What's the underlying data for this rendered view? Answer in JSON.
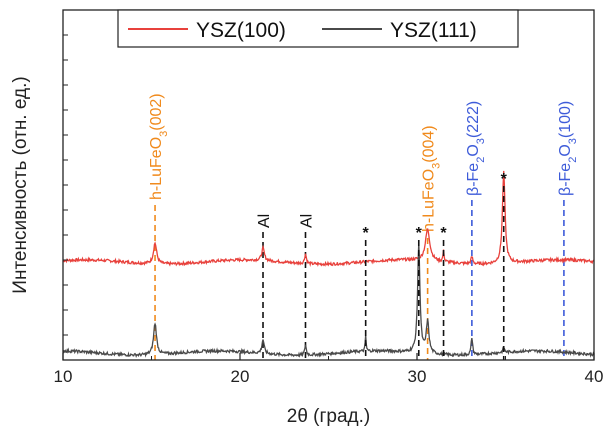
{
  "chart_data": {
    "type": "line",
    "xlabel": "2θ (град.)",
    "ylabel": "Интенсивность (отн. ед.)",
    "xlim": [
      10,
      40
    ],
    "xticks": [
      "10",
      "20",
      "30",
      "40"
    ],
    "yticks_labeled": false,
    "grid": false,
    "legend_position": "top-center",
    "series": [
      {
        "name": "YSZ(100)",
        "color": "#e8413c",
        "baseline": 0.28,
        "peaks": [
          {
            "x": 15.2,
            "h": 0.06,
            "w": 0.22
          },
          {
            "x": 21.3,
            "h": 0.035,
            "w": 0.18
          },
          {
            "x": 23.7,
            "h": 0.028,
            "w": 0.12
          },
          {
            "x": 30.6,
            "h": 0.09,
            "w": 0.3
          },
          {
            "x": 31.5,
            "h": 0.03,
            "w": 0.08
          },
          {
            "x": 33.1,
            "h": 0.02,
            "w": 0.12
          },
          {
            "x": 34.9,
            "h": 0.26,
            "w": 0.18
          }
        ]
      },
      {
        "name": "YSZ(111)",
        "color": "#4a4a4a",
        "baseline": 0.02,
        "peaks": [
          {
            "x": 15.2,
            "h": 0.09,
            "w": 0.2
          },
          {
            "x": 21.3,
            "h": 0.04,
            "w": 0.15
          },
          {
            "x": 23.7,
            "h": 0.03,
            "w": 0.1
          },
          {
            "x": 27.1,
            "h": 0.045,
            "w": 0.06
          },
          {
            "x": 30.1,
            "h": 0.31,
            "w": 0.16
          },
          {
            "x": 30.6,
            "h": 0.09,
            "w": 0.18
          },
          {
            "x": 33.1,
            "h": 0.05,
            "w": 0.1
          },
          {
            "x": 34.9,
            "h": 0.015,
            "w": 0.1
          }
        ]
      }
    ],
    "reference_lines": [
      {
        "x": 15.2,
        "color": "#f08a1c",
        "label": "h-LuFeO3(002)",
        "label_parts": [
          "h-LuFeO",
          "3",
          "(002)"
        ]
      },
      {
        "x": 30.6,
        "color": "#f08a1c",
        "label": "h-LuFeO3(004)",
        "label_parts": [
          "h-LuFeO",
          "3",
          "(004)"
        ]
      },
      {
        "x": 33.1,
        "color": "#3d5bd9",
        "label": "β-Fe2O3(222)",
        "label_parts": [
          "β-Fe",
          "2",
          "O",
          "3",
          "(222)"
        ]
      },
      {
        "x": 38.3,
        "color": "#3d5bd9",
        "label": "β-Fe2O3(100)",
        "label_parts": [
          "β-Fe",
          "2",
          "O",
          "3",
          "(100)"
        ]
      },
      {
        "x": 21.3,
        "color": "#111111",
        "label": "Al",
        "label_parts": [
          "Al"
        ]
      },
      {
        "x": 23.7,
        "color": "#111111",
        "label": "Al",
        "label_parts": [
          "Al"
        ]
      }
    ],
    "star_markers": [
      {
        "x": 27.1,
        "label": "*"
      },
      {
        "x": 30.1,
        "label": "*"
      },
      {
        "x": 31.5,
        "label": "*"
      },
      {
        "x": 34.9,
        "label": "*"
      }
    ]
  }
}
